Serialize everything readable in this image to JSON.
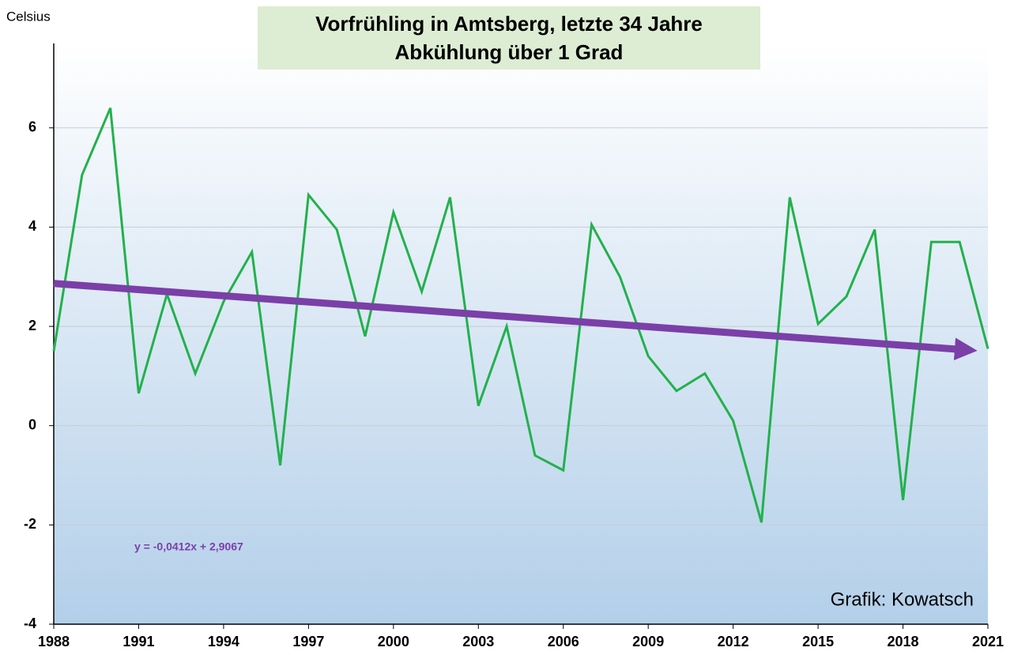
{
  "chart_data": {
    "type": "line",
    "title": "Vorfrühling in Amtsberg, letzte 34 Jahre",
    "subtitle": "Abkühlung über 1 Grad",
    "y_label": "Celsius",
    "credit": "Grafik: Kowatsch",
    "x": [
      1988,
      1989,
      1990,
      1991,
      1992,
      1993,
      1994,
      1995,
      1996,
      1997,
      1998,
      1999,
      2000,
      2001,
      2002,
      2003,
      2004,
      2005,
      2006,
      2007,
      2008,
      2009,
      2010,
      2011,
      2012,
      2013,
      2014,
      2015,
      2016,
      2017,
      2018,
      2019,
      2020,
      2021
    ],
    "series": [
      {
        "color": "#22b14c",
        "values": [
          1.5,
          5.05,
          6.4,
          0.65,
          2.65,
          1.05,
          2.5,
          3.5,
          -0.8,
          4.65,
          3.95,
          1.8,
          4.3,
          2.7,
          4.6,
          0.4,
          2.0,
          -0.6,
          -0.9,
          4.05,
          3.0,
          1.4,
          0.7,
          1.05,
          0.1,
          -1.95,
          4.6,
          2.05,
          2.6,
          3.95,
          -1.5,
          3.7,
          3.7,
          1.55
        ]
      }
    ],
    "trendline": {
      "equation": "y = -0,0412x + 2,9067",
      "color": "#7b3fa8",
      "x": [
        1988,
        2021
      ],
      "values": [
        2.8655,
        1.5059
      ]
    },
    "xlim": [
      1988,
      2021
    ],
    "xticks": [
      1988,
      1991,
      1994,
      1997,
      2000,
      2003,
      2006,
      2009,
      2012,
      2015,
      2018,
      2021
    ],
    "ylim": [
      -4,
      7.7
    ],
    "yticks": [
      -4,
      -2,
      0,
      2,
      4,
      6
    ],
    "grid": true
  }
}
